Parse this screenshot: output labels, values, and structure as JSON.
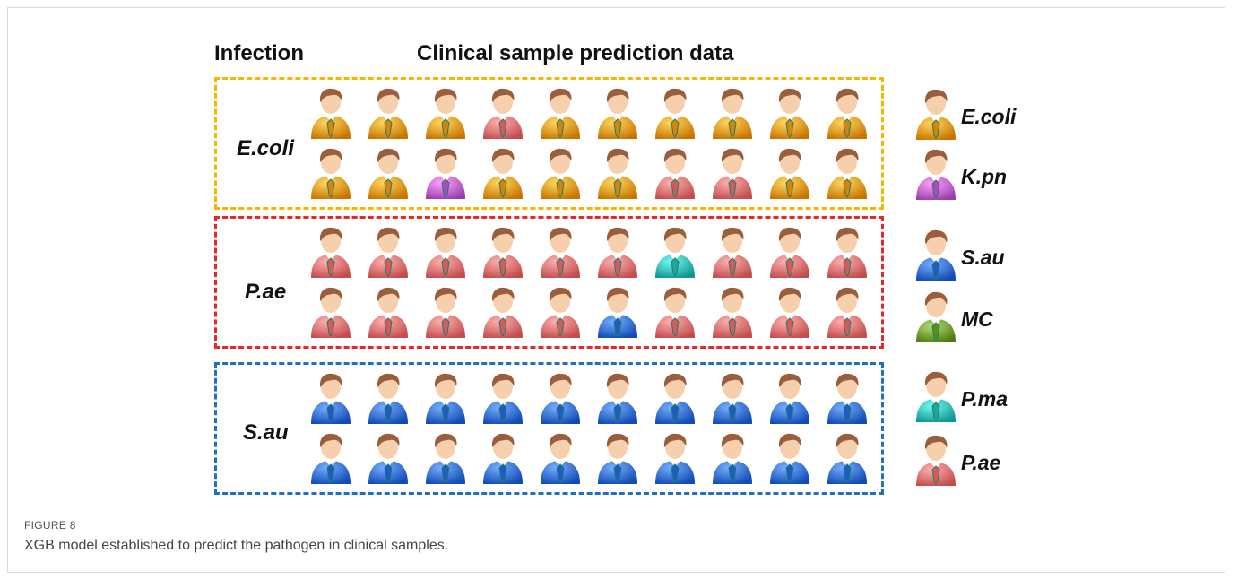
{
  "figure": {
    "headers": {
      "left": "Infection",
      "center": "Clinical sample prediction data"
    },
    "caption_label": "FIGURE 8",
    "caption_text": "XGB model established to predict the pathogen in clinical samples."
  },
  "colors": {
    "E.coli": "#f5a22a",
    "K.pn": "#c86bd9",
    "S.au": "#3f78e0",
    "MC": "#7aa83c",
    "P.ma": "#3cc3bb",
    "P.ae": "#f07a7a"
  },
  "groups": [
    {
      "label": "E.coli",
      "border_color": "#f5b800",
      "rows": [
        [
          "E.coli",
          "E.coli",
          "E.coli",
          "P.ae",
          "E.coli",
          "E.coli",
          "E.coli",
          "E.coli",
          "E.coli",
          "E.coli"
        ],
        [
          "E.coli",
          "E.coli",
          "K.pn",
          "E.coli",
          "E.coli",
          "E.coli",
          "P.ae",
          "P.ae",
          "E.coli",
          "E.coli"
        ]
      ]
    },
    {
      "label": "P.ae",
      "border_color": "#e8262b",
      "rows": [
        [
          "P.ae",
          "P.ae",
          "P.ae",
          "P.ae",
          "P.ae",
          "P.ae",
          "P.ma",
          "P.ae",
          "P.ae",
          "P.ae"
        ],
        [
          "P.ae",
          "P.ae",
          "P.ae",
          "P.ae",
          "P.ae",
          "S.au",
          "P.ae",
          "P.ae",
          "P.ae",
          "P.ae"
        ]
      ]
    },
    {
      "label": "S.au",
      "border_color": "#1f6fc5",
      "rows": [
        [
          "S.au",
          "S.au",
          "S.au",
          "S.au",
          "S.au",
          "S.au",
          "S.au",
          "S.au",
          "S.au",
          "S.au"
        ],
        [
          "S.au",
          "S.au",
          "S.au",
          "S.au",
          "S.au",
          "S.au",
          "S.au",
          "S.au",
          "S.au",
          "S.au"
        ]
      ]
    }
  ],
  "legend": [
    {
      "label": "E.coli",
      "pathogen": "E.coli"
    },
    {
      "label": "K.pn",
      "pathogen": "K.pn"
    },
    {
      "label": "S.au",
      "pathogen": "S.au"
    },
    {
      "label": "MC",
      "pathogen": "MC"
    },
    {
      "label": "P.ma",
      "pathogen": "P.ma"
    },
    {
      "label": "P.ae",
      "pathogen": "P.ae"
    }
  ]
}
